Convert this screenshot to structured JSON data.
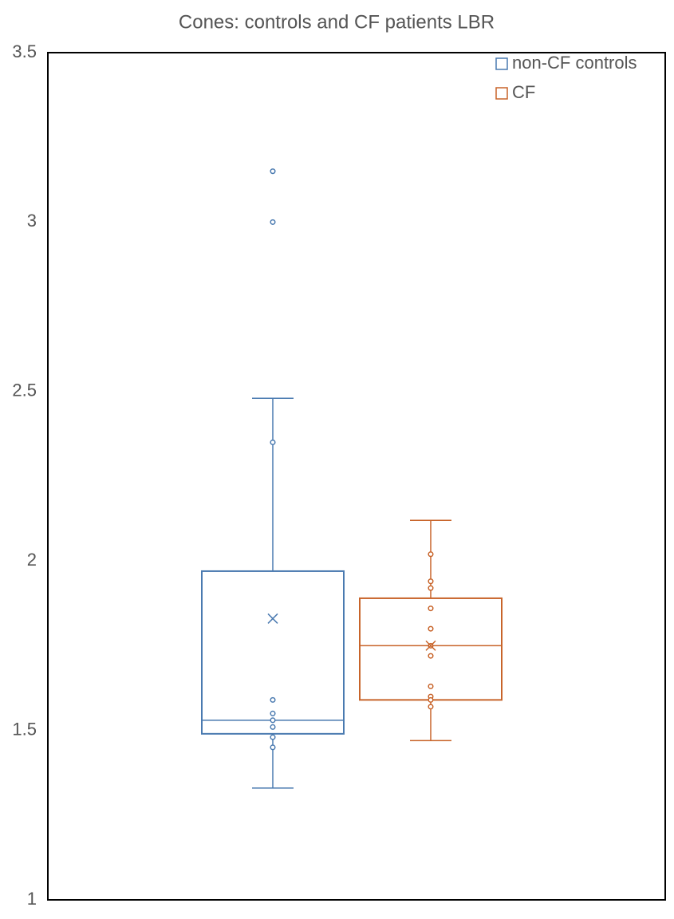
{
  "chart_data": {
    "type": "box",
    "title": "Cones: controls and CF patients LBR",
    "ylim": [
      1,
      3.5
    ],
    "yticks": [
      1,
      1.5,
      2,
      2.5,
      3,
      3.5
    ],
    "grid": false,
    "legend": "upper right",
    "series": [
      {
        "name": "non-CF controls",
        "color": "#4a7ab0",
        "min": 1.33,
        "q1": 1.49,
        "median": 1.53,
        "q3": 1.97,
        "max": 2.48,
        "mean": 1.83,
        "points": [
          3.15,
          3.0,
          2.35,
          1.59,
          1.55,
          1.53,
          1.51,
          1.48,
          1.45
        ]
      },
      {
        "name": "CF",
        "color": "#c8642a",
        "min": 1.47,
        "q1": 1.59,
        "median": 1.75,
        "q3": 1.89,
        "max": 2.12,
        "mean": 1.75,
        "points": [
          2.02,
          1.94,
          1.92,
          1.86,
          1.8,
          1.75,
          1.72,
          1.63,
          1.6,
          1.59,
          1.57
        ]
      }
    ]
  }
}
